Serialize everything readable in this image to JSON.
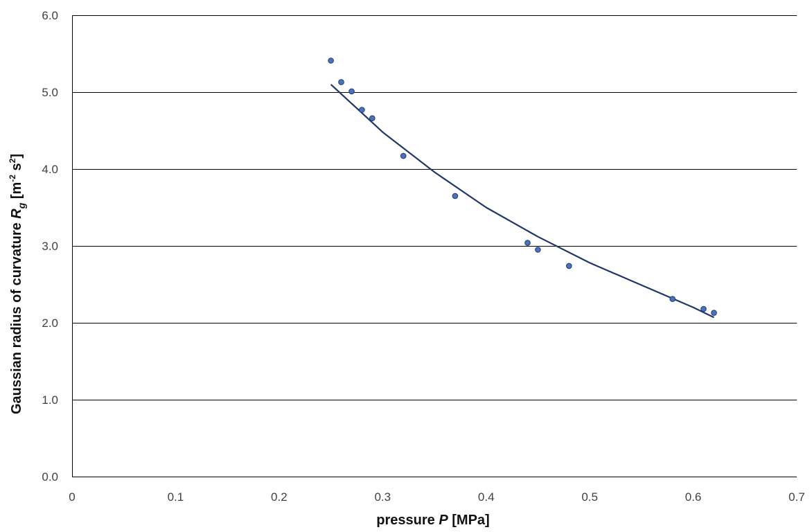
{
  "chart_data": {
    "type": "scatter",
    "xlabel": {
      "pre": "pressure ",
      "var": "P",
      "post": " [MPa]"
    },
    "ylabel": {
      "pre": "Gaussian radius of curvature ",
      "var": "R",
      "sub": "g",
      "unit_open": " [m",
      "unit_exp1": "-2",
      "unit_mid": " s",
      "unit_exp2": "2",
      "unit_close": "]"
    },
    "xlim": [
      0,
      0.7
    ],
    "ylim": [
      0,
      6
    ],
    "x_ticks": [
      "0",
      "0.1",
      "0.2",
      "0.3",
      "0.4",
      "0.5",
      "0.6",
      "0.7"
    ],
    "y_ticks": [
      "0.0",
      "1.0",
      "2.0",
      "3.0",
      "4.0",
      "5.0",
      "6.0"
    ],
    "grid": "horizontal",
    "colors": {
      "marker_fill": "#4a73b8",
      "marker_edge": "#1f3a6e",
      "trendline": "#1f3768",
      "grid": "#000000"
    },
    "series": [
      {
        "points": [
          [
            0.25,
            5.41
          ],
          [
            0.26,
            5.13
          ],
          [
            0.27,
            5.01
          ],
          [
            0.28,
            4.77
          ],
          [
            0.29,
            4.66
          ],
          [
            0.32,
            4.17
          ],
          [
            0.37,
            3.65
          ],
          [
            0.44,
            3.04
          ],
          [
            0.45,
            2.95
          ],
          [
            0.48,
            2.74
          ],
          [
            0.58,
            2.31
          ],
          [
            0.61,
            2.18
          ],
          [
            0.62,
            2.13
          ]
        ]
      }
    ],
    "trendline": {
      "x": [
        0.25,
        0.3,
        0.35,
        0.4,
        0.45,
        0.5,
        0.55,
        0.6,
        0.62
      ],
      "y": [
        5.1,
        4.48,
        3.96,
        3.5,
        3.12,
        2.78,
        2.49,
        2.2,
        2.07
      ]
    }
  }
}
